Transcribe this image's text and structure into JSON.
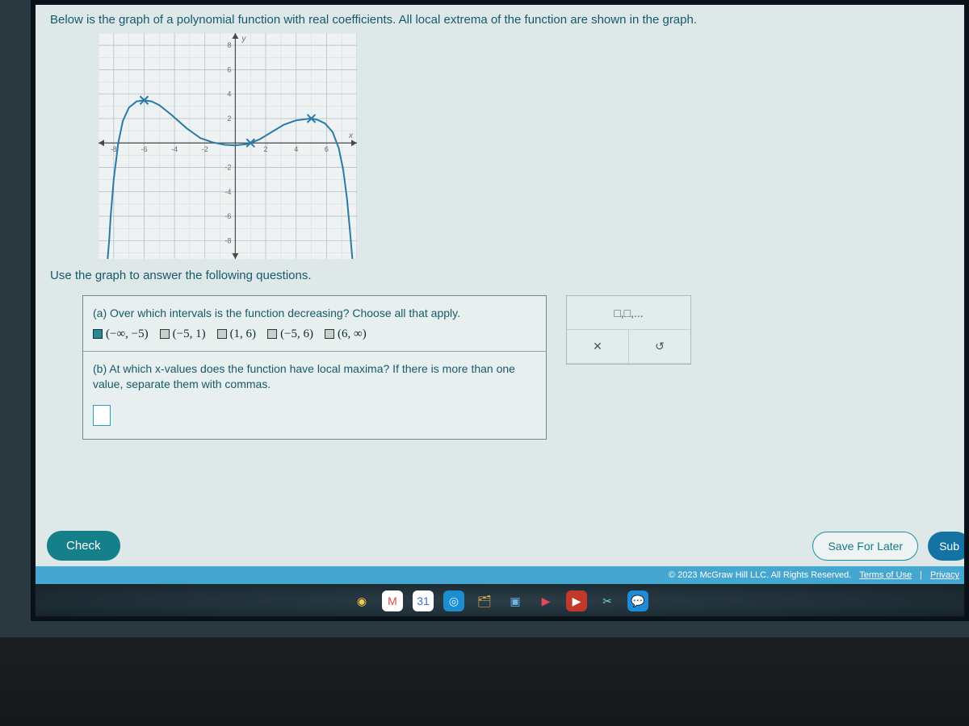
{
  "prompt": "Below is the graph of a polynomial function with real coefficients. All local extrema of the function are shown in the graph.",
  "instruction": "Use the graph to answer the following questions.",
  "graph": {
    "type": "line",
    "xlim": [
      -9,
      8
    ],
    "ylim": [
      -9.5,
      9
    ],
    "xtick_step": 2,
    "ytick_step": 2,
    "x_ticks": [
      -8,
      -6,
      -4,
      -2,
      2,
      4,
      6
    ],
    "y_ticks": [
      -8,
      -6,
      -4,
      -2,
      2,
      4,
      6,
      8
    ],
    "background_color": "#eef2f2",
    "grid_major_color": "#aebec0",
    "grid_minor_color": "#cfdadb",
    "axis_color": "#4a4a4a",
    "curve_color": "#2a7aa8",
    "curve_width": 2,
    "marker_color": "#2a7aa8",
    "marker_size": 5,
    "tick_fontsize": 9,
    "tick_color": "#6a6a6a",
    "axis_label_x": "x",
    "axis_label_y": "y",
    "curve_points": [
      [
        -8.4,
        -9.5
      ],
      [
        -8.3,
        -8
      ],
      [
        -8.2,
        -6
      ],
      [
        -8.0,
        -3
      ],
      [
        -7.7,
        0
      ],
      [
        -7.4,
        1.8
      ],
      [
        -7.0,
        2.9
      ],
      [
        -6.5,
        3.4
      ],
      [
        -6.0,
        3.5
      ],
      [
        -5.5,
        3.4
      ],
      [
        -5.0,
        3.1
      ],
      [
        -4.2,
        2.3
      ],
      [
        -3.2,
        1.2
      ],
      [
        -2.3,
        0.4
      ],
      [
        -1.5,
        0.05
      ],
      [
        -0.7,
        -0.15
      ],
      [
        0.0,
        -0.2
      ],
      [
        0.7,
        -0.1
      ],
      [
        1.0,
        0.0
      ],
      [
        1.6,
        0.3
      ],
      [
        2.4,
        0.9
      ],
      [
        3.2,
        1.5
      ],
      [
        4.0,
        1.85
      ],
      [
        4.6,
        1.95
      ],
      [
        5.0,
        2.0
      ],
      [
        5.4,
        1.9
      ],
      [
        5.9,
        1.6
      ],
      [
        6.4,
        0.9
      ],
      [
        6.8,
        -0.4
      ],
      [
        7.1,
        -2.2
      ],
      [
        7.35,
        -4.6
      ],
      [
        7.55,
        -7.3
      ],
      [
        7.7,
        -9.5
      ]
    ],
    "markers": [
      {
        "x": -6,
        "y": 3.5
      },
      {
        "x": 1,
        "y": 0
      },
      {
        "x": 5,
        "y": 2
      }
    ]
  },
  "question_a": {
    "text": "(a) Over which intervals is the function decreasing? Choose all that apply.",
    "options": [
      {
        "label": "(−∞, −5)",
        "checked": true
      },
      {
        "label": "(−5, 1)",
        "checked": false
      },
      {
        "label": "(1, 6)",
        "checked": false
      },
      {
        "label": "(−5, 6)",
        "checked": false
      },
      {
        "label": "(6, ∞)",
        "checked": false
      }
    ]
  },
  "question_b": {
    "text": "(b) At which x-values does the function have local maxima? If there is more than one value, separate them with commas.",
    "placeholder": ""
  },
  "palette": {
    "hint_label": "□,□,...",
    "clear_label": "✕",
    "reset_label": "↺"
  },
  "buttons": {
    "check": "Check",
    "save": "Save For Later",
    "submit": "Sub"
  },
  "footer": {
    "copyright": "© 2023 McGraw Hill LLC. All Rights Reserved.",
    "terms": "Terms of Use",
    "privacy": "Privacy"
  },
  "taskbar": {
    "icons": [
      {
        "name": "chrome-icon",
        "glyph": "◉",
        "bg": "transparent",
        "color": "#f2c84c"
      },
      {
        "name": "gmail-icon",
        "glyph": "M",
        "bg": "#ffffff",
        "color": "#d44b3d"
      },
      {
        "name": "calendar-icon",
        "glyph": "31",
        "bg": "#ffffff",
        "color": "#3a70c8"
      },
      {
        "name": "edge-icon",
        "glyph": "◎",
        "bg": "#1b8dd0",
        "color": "#e8f4fb"
      },
      {
        "name": "files-icon",
        "glyph": "🗂",
        "bg": "transparent",
        "color": "#e8b255"
      },
      {
        "name": "camera-icon",
        "glyph": "▣",
        "bg": "transparent",
        "color": "#6cb6e5"
      },
      {
        "name": "play-icon",
        "glyph": "▶",
        "bg": "transparent",
        "color": "#e24a5a"
      },
      {
        "name": "youtube-icon",
        "glyph": "▶",
        "bg": "#c0392b",
        "color": "#ffffff"
      },
      {
        "name": "snip-icon",
        "glyph": "✂",
        "bg": "transparent",
        "color": "#7ad0d0"
      },
      {
        "name": "chat-icon",
        "glyph": "💬",
        "bg": "#1e8bd6",
        "color": "#ffffff"
      }
    ]
  }
}
